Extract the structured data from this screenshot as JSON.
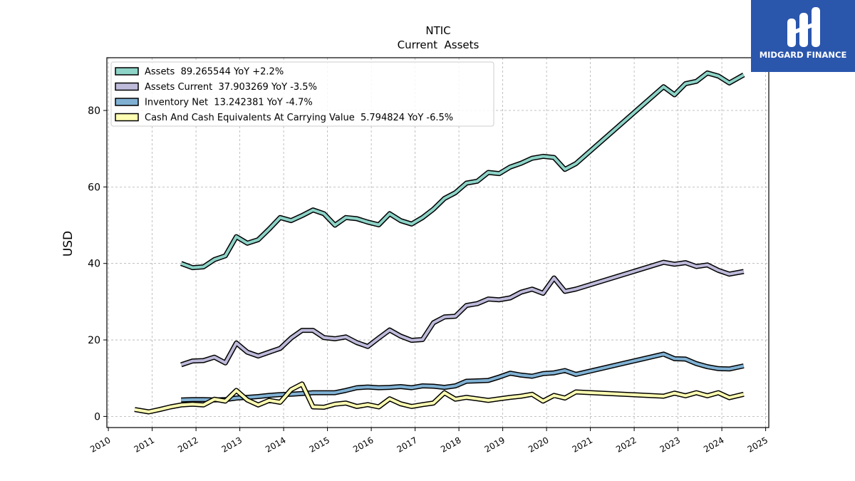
{
  "brand": {
    "name": "MIDGARD FINANCE",
    "background": "#2a56ac"
  },
  "chart_data": {
    "type": "line",
    "title": "NTIC",
    "subtitle": "Current  Assets",
    "ylabel": "USD",
    "xlabel": "",
    "xlim": [
      2009.97,
      2025.1
    ],
    "ylim": [
      -3,
      94
    ],
    "x_ticks": [
      2010,
      2011,
      2012,
      2013,
      2014,
      2015,
      2016,
      2017,
      2018,
      2019,
      2020,
      2021,
      2022,
      2023,
      2024,
      2025
    ],
    "y_ticks": [
      0,
      20,
      40,
      60,
      80
    ],
    "grid": true,
    "legend_position": "top-left",
    "series": [
      {
        "name": "Assets",
        "legend": "Assets  89.265544 YoY +2.2%",
        "color": "#8dd3c7",
        "points": [
          [
            2011.66,
            40.0
          ],
          [
            2011.92,
            38.9
          ],
          [
            2012.17,
            39.1
          ],
          [
            2012.42,
            41.0
          ],
          [
            2012.67,
            42.0
          ],
          [
            2012.92,
            47.0
          ],
          [
            2013.17,
            45.3
          ],
          [
            2013.42,
            46.2
          ],
          [
            2013.67,
            49.0
          ],
          [
            2013.92,
            52.0
          ],
          [
            2014.17,
            51.2
          ],
          [
            2014.42,
            52.5
          ],
          [
            2014.67,
            54.0
          ],
          [
            2014.92,
            53.0
          ],
          [
            2015.17,
            50.0
          ],
          [
            2015.42,
            52.0
          ],
          [
            2015.67,
            51.7
          ],
          [
            2015.92,
            50.8
          ],
          [
            2016.17,
            50.1
          ],
          [
            2016.42,
            53.0
          ],
          [
            2016.67,
            51.2
          ],
          [
            2016.92,
            50.3
          ],
          [
            2017.17,
            52.0
          ],
          [
            2017.42,
            54.2
          ],
          [
            2017.67,
            57.0
          ],
          [
            2017.92,
            58.5
          ],
          [
            2018.17,
            61.0
          ],
          [
            2018.42,
            61.5
          ],
          [
            2018.67,
            63.8
          ],
          [
            2018.92,
            63.5
          ],
          [
            2019.17,
            65.2
          ],
          [
            2019.42,
            66.2
          ],
          [
            2019.67,
            67.5
          ],
          [
            2019.92,
            68.0
          ],
          [
            2020.17,
            67.7
          ],
          [
            2020.42,
            64.6
          ],
          [
            2020.67,
            66.1
          ],
          [
            2022.67,
            86.2
          ],
          [
            2022.92,
            84.1
          ],
          [
            2023.17,
            87.0
          ],
          [
            2023.42,
            87.6
          ],
          [
            2023.67,
            89.8
          ],
          [
            2023.92,
            89.0
          ],
          [
            2024.17,
            87.2
          ],
          [
            2024.5,
            89.3
          ]
        ]
      },
      {
        "name": "Assets Current",
        "legend": "Assets Current  37.903269 YoY -3.5%",
        "color": "#bebada",
        "points": [
          [
            2011.66,
            13.5
          ],
          [
            2011.92,
            14.5
          ],
          [
            2012.17,
            14.6
          ],
          [
            2012.42,
            15.5
          ],
          [
            2012.67,
            14.0
          ],
          [
            2012.92,
            19.2
          ],
          [
            2013.17,
            16.8
          ],
          [
            2013.42,
            15.8
          ],
          [
            2013.67,
            16.8
          ],
          [
            2013.92,
            17.8
          ],
          [
            2014.17,
            20.5
          ],
          [
            2014.42,
            22.5
          ],
          [
            2014.67,
            22.5
          ],
          [
            2014.92,
            20.6
          ],
          [
            2015.17,
            20.3
          ],
          [
            2015.42,
            20.8
          ],
          [
            2015.67,
            19.3
          ],
          [
            2015.92,
            18.3
          ],
          [
            2016.17,
            20.5
          ],
          [
            2016.42,
            22.6
          ],
          [
            2016.67,
            21.0
          ],
          [
            2016.92,
            19.9
          ],
          [
            2017.17,
            20.1
          ],
          [
            2017.42,
            24.5
          ],
          [
            2017.67,
            26.0
          ],
          [
            2017.92,
            26.2
          ],
          [
            2018.17,
            29.0
          ],
          [
            2018.42,
            29.5
          ],
          [
            2018.67,
            30.7
          ],
          [
            2018.92,
            30.5
          ],
          [
            2019.17,
            31.0
          ],
          [
            2019.42,
            32.5
          ],
          [
            2019.67,
            33.3
          ],
          [
            2019.92,
            32.2
          ],
          [
            2020.17,
            36.2
          ],
          [
            2020.42,
            32.7
          ],
          [
            2020.67,
            33.3
          ],
          [
            2022.67,
            40.3
          ],
          [
            2022.92,
            39.8
          ],
          [
            2023.17,
            40.2
          ],
          [
            2023.42,
            39.2
          ],
          [
            2023.67,
            39.6
          ],
          [
            2023.92,
            38.2
          ],
          [
            2024.17,
            37.2
          ],
          [
            2024.5,
            37.9
          ]
        ]
      },
      {
        "name": "Inventory Net",
        "legend": "Inventory Net  13.242381 YoY -4.7%",
        "color": "#80b1d3",
        "points": [
          [
            2011.66,
            4.3
          ],
          [
            2011.92,
            4.4
          ],
          [
            2012.17,
            4.4
          ],
          [
            2012.42,
            4.3
          ],
          [
            2012.67,
            4.4
          ],
          [
            2012.92,
            4.8
          ],
          [
            2013.17,
            5.0
          ],
          [
            2013.42,
            5.2
          ],
          [
            2013.67,
            5.5
          ],
          [
            2013.92,
            5.7
          ],
          [
            2014.17,
            5.8
          ],
          [
            2014.42,
            6.0
          ],
          [
            2014.67,
            6.2
          ],
          [
            2014.92,
            6.2
          ],
          [
            2015.17,
            6.2
          ],
          [
            2015.42,
            6.8
          ],
          [
            2015.67,
            7.5
          ],
          [
            2015.92,
            7.7
          ],
          [
            2016.17,
            7.5
          ],
          [
            2016.42,
            7.6
          ],
          [
            2016.67,
            7.8
          ],
          [
            2016.92,
            7.5
          ],
          [
            2017.17,
            8.0
          ],
          [
            2017.42,
            7.9
          ],
          [
            2017.67,
            7.6
          ],
          [
            2017.92,
            8.0
          ],
          [
            2018.17,
            9.2
          ],
          [
            2018.42,
            9.3
          ],
          [
            2018.67,
            9.4
          ],
          [
            2018.92,
            10.3
          ],
          [
            2019.17,
            11.3
          ],
          [
            2019.42,
            10.8
          ],
          [
            2019.67,
            10.5
          ],
          [
            2019.92,
            11.2
          ],
          [
            2020.17,
            11.4
          ],
          [
            2020.42,
            12.0
          ],
          [
            2020.67,
            11.0
          ],
          [
            2022.67,
            16.3
          ],
          [
            2022.92,
            15.1
          ],
          [
            2023.17,
            15.0
          ],
          [
            2023.42,
            13.8
          ],
          [
            2023.67,
            13.0
          ],
          [
            2023.92,
            12.5
          ],
          [
            2024.17,
            12.4
          ],
          [
            2024.5,
            13.2
          ]
        ]
      },
      {
        "name": "Cash And Cash Equivalents At Carrying Value",
        "legend": "Cash And Cash Equivalents At Carrying Value  5.794824 YoY -6.5%",
        "color": "#ffffb3",
        "points": [
          [
            2010.6,
            1.8
          ],
          [
            2010.92,
            1.2
          ],
          [
            2011.17,
            1.8
          ],
          [
            2011.42,
            2.5
          ],
          [
            2011.66,
            3.0
          ],
          [
            2011.92,
            3.2
          ],
          [
            2012.17,
            3.0
          ],
          [
            2012.42,
            4.5
          ],
          [
            2012.67,
            4.0
          ],
          [
            2012.92,
            6.8
          ],
          [
            2013.17,
            4.3
          ],
          [
            2013.42,
            3.0
          ],
          [
            2013.67,
            4.2
          ],
          [
            2013.92,
            3.7
          ],
          [
            2014.17,
            7.0
          ],
          [
            2014.42,
            8.5
          ],
          [
            2014.67,
            2.5
          ],
          [
            2014.92,
            2.4
          ],
          [
            2015.17,
            3.2
          ],
          [
            2015.42,
            3.5
          ],
          [
            2015.67,
            2.6
          ],
          [
            2015.92,
            3.1
          ],
          [
            2016.17,
            2.5
          ],
          [
            2016.42,
            4.6
          ],
          [
            2016.67,
            3.3
          ],
          [
            2016.92,
            2.6
          ],
          [
            2017.17,
            3.1
          ],
          [
            2017.42,
            3.5
          ],
          [
            2017.67,
            6.2
          ],
          [
            2017.92,
            4.5
          ],
          [
            2018.17,
            5.0
          ],
          [
            2018.42,
            4.6
          ],
          [
            2018.67,
            4.2
          ],
          [
            2018.92,
            4.6
          ],
          [
            2019.17,
            5.0
          ],
          [
            2019.42,
            5.3
          ],
          [
            2019.67,
            5.8
          ],
          [
            2019.92,
            4.0
          ],
          [
            2020.17,
            5.5
          ],
          [
            2020.42,
            4.8
          ],
          [
            2020.67,
            6.4
          ],
          [
            2022.67,
            5.3
          ],
          [
            2022.92,
            6.1
          ],
          [
            2023.17,
            5.4
          ],
          [
            2023.42,
            6.2
          ],
          [
            2023.67,
            5.4
          ],
          [
            2023.92,
            6.2
          ],
          [
            2024.17,
            4.9
          ],
          [
            2024.5,
            5.8
          ]
        ]
      }
    ]
  }
}
